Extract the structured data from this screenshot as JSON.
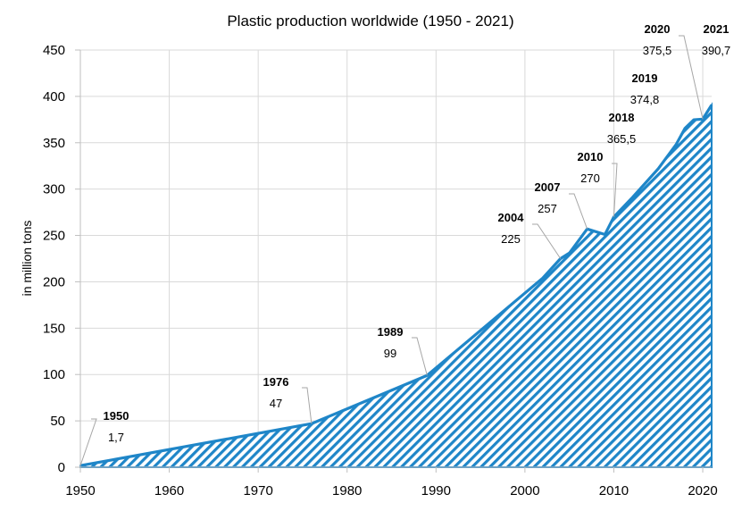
{
  "chart_data": {
    "type": "area",
    "title": "Plastic production worldwide (1950 - 2021)",
    "xlabel": "",
    "ylabel": "in million tons",
    "xlim": [
      1950,
      2021
    ],
    "ylim": [
      0,
      450
    ],
    "x_ticks": [
      1950,
      1960,
      1970,
      1980,
      1990,
      2000,
      2010,
      2020
    ],
    "y_ticks": [
      0,
      50,
      100,
      150,
      200,
      250,
      300,
      350,
      400,
      450
    ],
    "grid": true,
    "colors": {
      "series": "#1f86c8",
      "grid": "#d9d9d9",
      "callout": "#a6a6a6"
    },
    "x": [
      1950,
      1976,
      1989,
      2002,
      2004,
      2005,
      2007,
      2009,
      2010,
      2012,
      2015,
      2017,
      2018,
      2019,
      2020,
      2021
    ],
    "values": [
      1.7,
      47,
      99,
      204,
      225,
      231,
      257,
      251,
      270,
      290,
      322,
      348,
      365.5,
      374.8,
      375.5,
      390.7
    ],
    "annotations": [
      {
        "year": "1950",
        "value": "1,7",
        "x": 1950,
        "y": 1.7
      },
      {
        "year": "1976",
        "value": "47",
        "x": 1976,
        "y": 47
      },
      {
        "year": "1989",
        "value": "99",
        "x": 1989,
        "y": 99
      },
      {
        "year": "2004",
        "value": "225",
        "x": 2004,
        "y": 225
      },
      {
        "year": "2007",
        "value": "257",
        "x": 2007,
        "y": 257
      },
      {
        "year": "2010",
        "value": "270",
        "x": 2010,
        "y": 270
      },
      {
        "year": "2018",
        "value": "365,5",
        "x": 2018,
        "y": 365.5
      },
      {
        "year": "2019",
        "value": "374,8",
        "x": 2019,
        "y": 374.8
      },
      {
        "year": "2020",
        "value": "375,5",
        "x": 2020,
        "y": 375.5
      },
      {
        "year": "2021",
        "value": "390,7",
        "x": 2021,
        "y": 390.7
      }
    ]
  }
}
